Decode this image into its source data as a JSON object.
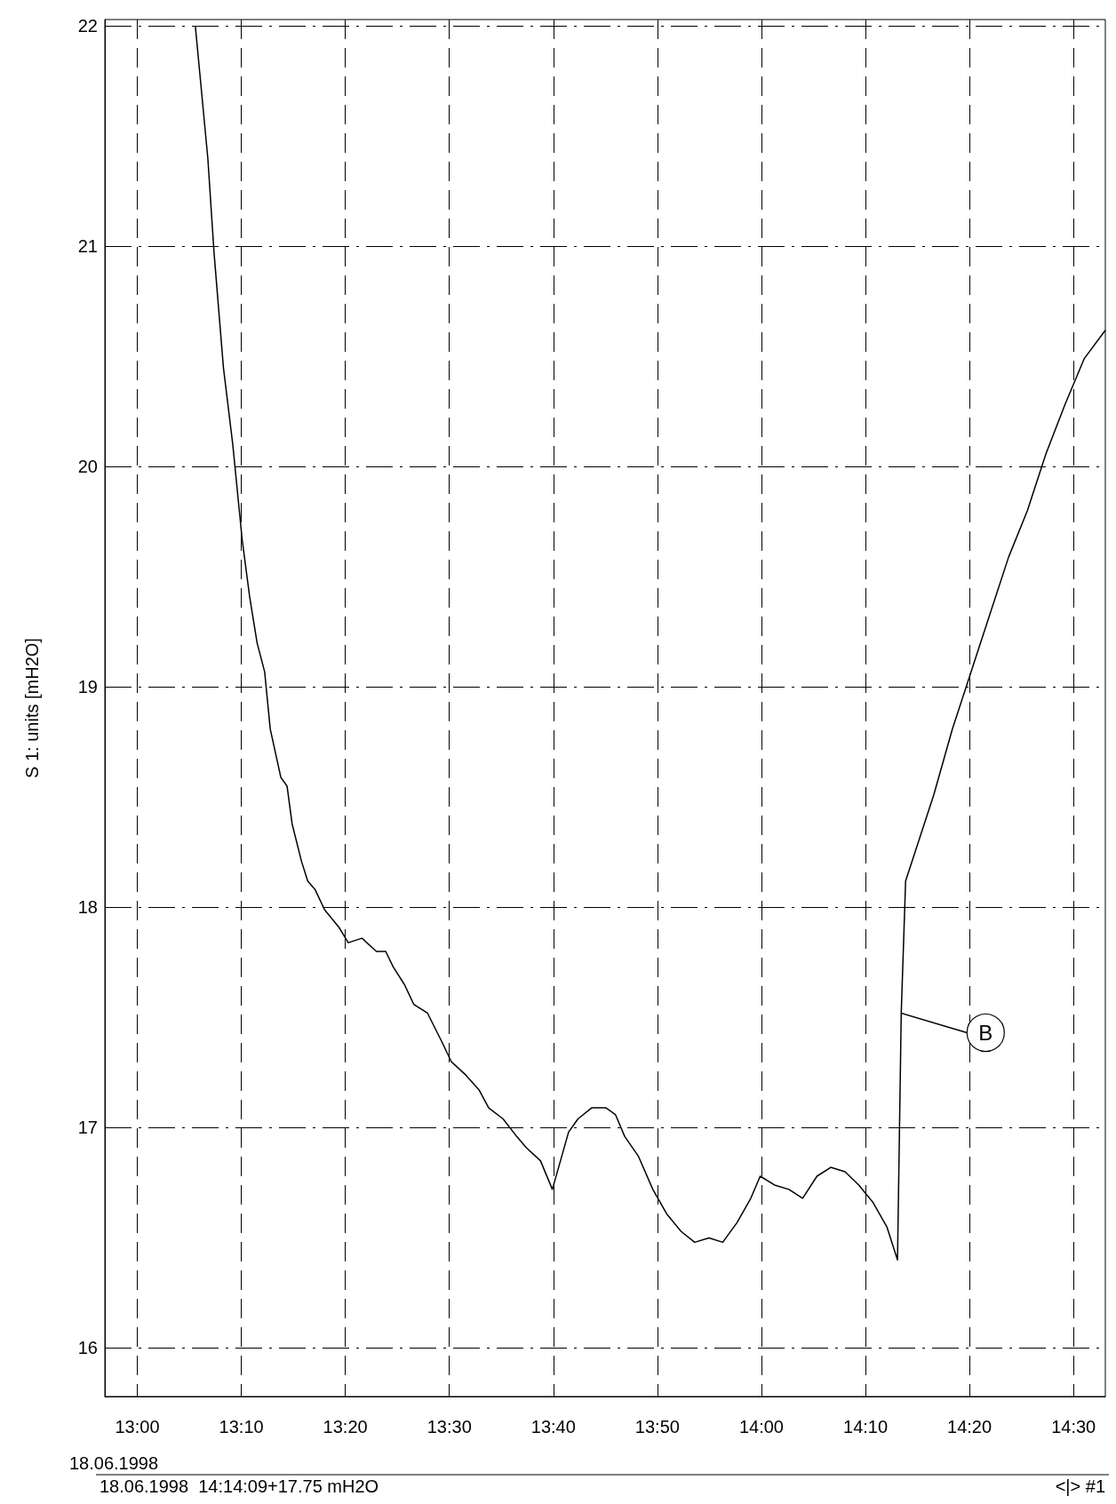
{
  "chart_data": {
    "type": "line",
    "ylabel": "S 1: units [mH2O]",
    "xlabel": "18.06.1998",
    "x": [
      13.093,
      13.113,
      13.123,
      13.138,
      13.153,
      13.168,
      13.18,
      13.192,
      13.204,
      13.213,
      13.23,
      13.24,
      13.248,
      13.263,
      13.273,
      13.285,
      13.3,
      13.323,
      13.338,
      13.36,
      13.383,
      13.398,
      13.41,
      13.428,
      13.443,
      13.465,
      13.488,
      13.503,
      13.526,
      13.548,
      13.563,
      13.586,
      13.608,
      13.623,
      13.646,
      13.665,
      13.676,
      13.691,
      13.706,
      13.728,
      13.751,
      13.766,
      13.781,
      13.803,
      13.826,
      13.848,
      13.871,
      13.893,
      13.916,
      13.938,
      13.961,
      13.983,
      13.998,
      14.021,
      14.044,
      14.066,
      14.089,
      14.111,
      14.134,
      14.156,
      14.179,
      14.201,
      14.218,
      14.224,
      14.231,
      14.246,
      14.276,
      14.306,
      14.336,
      14.366,
      14.396,
      14.426,
      14.456,
      14.486,
      14.517,
      14.551
    ],
    "series": [
      {
        "color": "#000000",
        "values": [
          22.0,
          21.4,
          20.97,
          20.45,
          20.1,
          19.67,
          19.41,
          19.2,
          19.07,
          18.81,
          18.59,
          18.55,
          18.38,
          18.21,
          18.12,
          18.08,
          17.99,
          17.91,
          17.84,
          17.86,
          17.8,
          17.8,
          17.73,
          17.65,
          17.56,
          17.52,
          17.39,
          17.3,
          17.24,
          17.17,
          17.09,
          17.04,
          16.96,
          16.91,
          16.85,
          16.72,
          16.83,
          16.98,
          17.04,
          17.09,
          17.09,
          17.06,
          16.96,
          16.87,
          16.72,
          16.61,
          16.53,
          16.48,
          16.5,
          16.48,
          16.57,
          16.68,
          16.78,
          16.74,
          16.72,
          16.68,
          16.78,
          16.82,
          16.8,
          16.74,
          16.66,
          16.55,
          16.4,
          17.52,
          18.12,
          18.25,
          18.51,
          18.81,
          19.07,
          19.33,
          19.59,
          19.8,
          20.06,
          20.28,
          20.49,
          20.62
        ]
      }
    ],
    "xlim": [
      12.948,
      14.551
    ],
    "xticks": [
      {
        "value": 13,
        "label": "13:00"
      },
      {
        "value": 13.1667,
        "label": "13:10"
      },
      {
        "value": 13.3333,
        "label": "13:20"
      },
      {
        "value": 13.5,
        "label": "13:30"
      },
      {
        "value": 13.6667,
        "label": "13:40"
      },
      {
        "value": 13.8333,
        "label": "13:50"
      },
      {
        "value": 14,
        "label": "14:00"
      },
      {
        "value": 14.1667,
        "label": "14:10"
      },
      {
        "value": 14.3333,
        "label": "14:20"
      },
      {
        "value": 14.5,
        "label": "14:30"
      }
    ],
    "ylim": [
      15.78,
      22.03
    ],
    "yticks": [
      16,
      17,
      18,
      19,
      20,
      21,
      22
    ],
    "grid": true,
    "annotations": [
      {
        "text": "B",
        "x": 14.224,
        "y": 17.52
      },
      "18.06.1998  14:14:09+17.75 mH2O",
      "<|> #1"
    ]
  }
}
